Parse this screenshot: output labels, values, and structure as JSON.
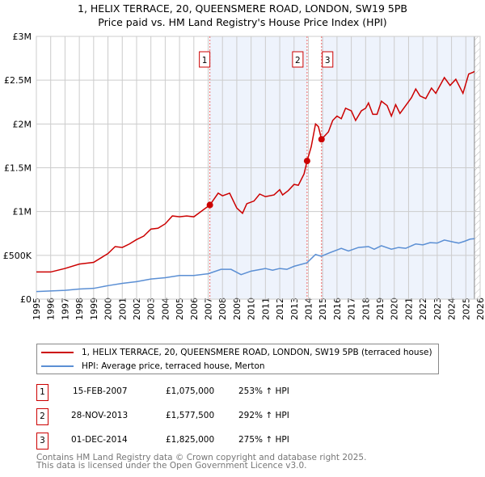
{
  "title_line1": "1, HELIX TERRACE, 20, QUEENSMERE ROAD, LONDON, SW19 5PB",
  "title_line2": "Price paid vs. HM Land Registry's House Price Index (HPI)",
  "colors": {
    "property": "#cc0000",
    "hpi": "#5b8fd4",
    "shade": "#eef3fc",
    "grid": "#cccccc"
  },
  "chart_data": {
    "type": "line",
    "xlim": [
      1995,
      2026
    ],
    "ylim": [
      0,
      3000000
    ],
    "yticks": [
      {
        "v": 0,
        "label": "£0"
      },
      {
        "v": 500000,
        "label": "£500K"
      },
      {
        "v": 1000000,
        "label": "£1M"
      },
      {
        "v": 1500000,
        "label": "£1.5M"
      },
      {
        "v": 2000000,
        "label": "£2M"
      },
      {
        "v": 2500000,
        "label": "£2.5M"
      },
      {
        "v": 3000000,
        "label": "£3M"
      }
    ],
    "xticks": [
      "1995",
      "1996",
      "1997",
      "1998",
      "1999",
      "2000",
      "2001",
      "2002",
      "2003",
      "2004",
      "2005",
      "2006",
      "2007",
      "2008",
      "2009",
      "2010",
      "2011",
      "2012",
      "2013",
      "2014",
      "2015",
      "2016",
      "2017",
      "2018",
      "2019",
      "2020",
      "2021",
      "2022",
      "2023",
      "2024",
      "2025",
      "2026"
    ],
    "grid": true,
    "data_end": 2025.6,
    "sales": [
      {
        "label": "1",
        "x": 2007.12,
        "y": 1075000
      },
      {
        "label": "2",
        "x": 2013.91,
        "y": 1577500
      },
      {
        "label": "3",
        "x": 2014.92,
        "y": 1825000
      }
    ],
    "series": [
      {
        "name": "1, HELIX TERRACE, 20, QUEENSMERE ROAD, LONDON, SW19 5PB (terraced house)",
        "color": "#cc0000",
        "points": [
          [
            1995,
            310000
          ],
          [
            1996,
            310000
          ],
          [
            1997,
            350000
          ],
          [
            1998,
            400000
          ],
          [
            1999,
            420000
          ],
          [
            2000,
            520000
          ],
          [
            2000.5,
            600000
          ],
          [
            2001,
            590000
          ],
          [
            2001.5,
            630000
          ],
          [
            2002,
            680000
          ],
          [
            2002.5,
            720000
          ],
          [
            2003,
            800000
          ],
          [
            2003.5,
            810000
          ],
          [
            2004,
            860000
          ],
          [
            2004.5,
            950000
          ],
          [
            2005,
            940000
          ],
          [
            2005.5,
            950000
          ],
          [
            2006,
            940000
          ],
          [
            2006.5,
            1000000
          ],
          [
            2007.12,
            1075000
          ],
          [
            2007.7,
            1210000
          ],
          [
            2008,
            1180000
          ],
          [
            2008.5,
            1210000
          ],
          [
            2009,
            1040000
          ],
          [
            2009.4,
            980000
          ],
          [
            2009.7,
            1090000
          ],
          [
            2010.2,
            1120000
          ],
          [
            2010.6,
            1200000
          ],
          [
            2011,
            1170000
          ],
          [
            2011.6,
            1190000
          ],
          [
            2012,
            1250000
          ],
          [
            2012.2,
            1190000
          ],
          [
            2012.6,
            1240000
          ],
          [
            2013,
            1310000
          ],
          [
            2013.3,
            1300000
          ],
          [
            2013.7,
            1430000
          ],
          [
            2013.91,
            1577500
          ],
          [
            2014.2,
            1740000
          ],
          [
            2014.5,
            2000000
          ],
          [
            2014.7,
            1970000
          ],
          [
            2014.92,
            1825000
          ],
          [
            2015.4,
            1910000
          ],
          [
            2015.7,
            2040000
          ],
          [
            2016,
            2090000
          ],
          [
            2016.3,
            2060000
          ],
          [
            2016.6,
            2180000
          ],
          [
            2017,
            2150000
          ],
          [
            2017.3,
            2040000
          ],
          [
            2017.7,
            2150000
          ],
          [
            2018,
            2180000
          ],
          [
            2018.2,
            2240000
          ],
          [
            2018.5,
            2110000
          ],
          [
            2018.8,
            2110000
          ],
          [
            2019.1,
            2260000
          ],
          [
            2019.5,
            2210000
          ],
          [
            2019.8,
            2090000
          ],
          [
            2020.1,
            2220000
          ],
          [
            2020.4,
            2120000
          ],
          [
            2020.8,
            2210000
          ],
          [
            2021.2,
            2300000
          ],
          [
            2021.5,
            2400000
          ],
          [
            2021.8,
            2320000
          ],
          [
            2022.2,
            2290000
          ],
          [
            2022.6,
            2410000
          ],
          [
            2022.9,
            2350000
          ],
          [
            2023.5,
            2530000
          ],
          [
            2023.9,
            2440000
          ],
          [
            2024.3,
            2510000
          ],
          [
            2024.8,
            2350000
          ],
          [
            2025.2,
            2570000
          ],
          [
            2025.5,
            2590000
          ],
          [
            2025.6,
            2600000
          ]
        ]
      },
      {
        "name": "HPI: Average price, terraced house, Merton",
        "color": "#5b8fd4",
        "points": [
          [
            1995,
            86000
          ],
          [
            1997,
            100000
          ],
          [
            1998,
            115000
          ],
          [
            1999,
            123000
          ],
          [
            2000,
            154000
          ],
          [
            2001,
            180000
          ],
          [
            2002,
            200000
          ],
          [
            2003,
            230000
          ],
          [
            2004,
            245000
          ],
          [
            2005,
            270000
          ],
          [
            2006,
            270000
          ],
          [
            2007,
            290000
          ],
          [
            2007.9,
            340000
          ],
          [
            2008.6,
            340000
          ],
          [
            2009.3,
            280000
          ],
          [
            2010,
            320000
          ],
          [
            2011,
            350000
          ],
          [
            2011.5,
            330000
          ],
          [
            2012,
            350000
          ],
          [
            2012.5,
            340000
          ],
          [
            2013,
            375000
          ],
          [
            2013.9,
            415000
          ],
          [
            2014.5,
            510000
          ],
          [
            2014.9,
            490000
          ],
          [
            2015.5,
            530000
          ],
          [
            2016.3,
            580000
          ],
          [
            2016.8,
            550000
          ],
          [
            2017.5,
            590000
          ],
          [
            2018.2,
            600000
          ],
          [
            2018.6,
            570000
          ],
          [
            2019.1,
            610000
          ],
          [
            2019.8,
            570000
          ],
          [
            2020.3,
            590000
          ],
          [
            2020.8,
            580000
          ],
          [
            2021.5,
            630000
          ],
          [
            2022,
            620000
          ],
          [
            2022.5,
            645000
          ],
          [
            2023,
            640000
          ],
          [
            2023.5,
            675000
          ],
          [
            2024.2,
            650000
          ],
          [
            2024.5,
            640000
          ],
          [
            2024.9,
            660000
          ],
          [
            2025.3,
            685000
          ],
          [
            2025.6,
            690000
          ]
        ]
      }
    ]
  },
  "legend": {
    "property": "1, HELIX TERRACE, 20, QUEENSMERE ROAD, LONDON, SW19 5PB (terraced house)",
    "hpi": "HPI: Average price, terraced house, Merton"
  },
  "transactions": [
    {
      "num": "1",
      "date": "15-FEB-2007",
      "price": "£1,075,000",
      "hpi": "253% ↑ HPI"
    },
    {
      "num": "2",
      "date": "28-NOV-2013",
      "price": "£1,577,500",
      "hpi": "292% ↑ HPI"
    },
    {
      "num": "3",
      "date": "01-DEC-2014",
      "price": "£1,825,000",
      "hpi": "275% ↑ HPI"
    }
  ],
  "footer": {
    "line1": "Contains HM Land Registry data © Crown copyright and database right 2025.",
    "line2": "This data is licensed under the Open Government Licence v3.0."
  }
}
